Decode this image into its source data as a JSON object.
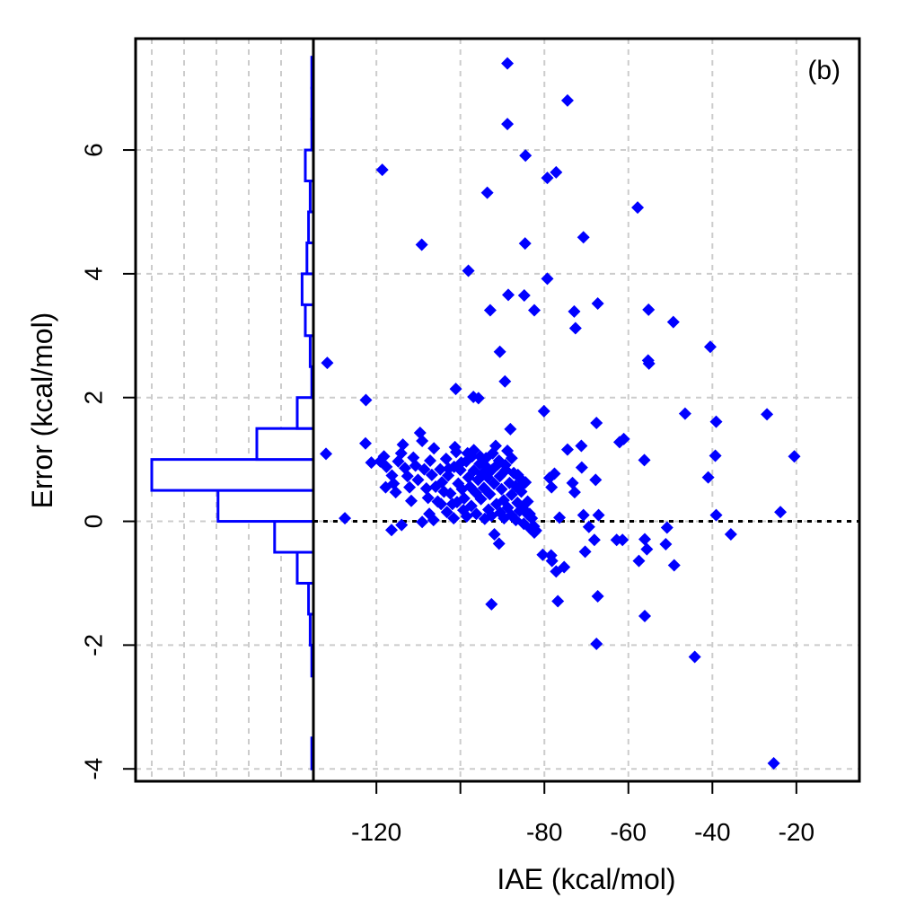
{
  "chart_data": {
    "type": "scatter",
    "panel_label": "(b)",
    "xlabel": "IAE (kcal/mol)",
    "ylabel": "Error (kcal/mol)",
    "xlim": [
      -135,
      -5
    ],
    "ylim": [
      -4.2,
      7.8
    ],
    "x_ticks": [
      {
        "value": -120,
        "label": "-120"
      },
      {
        "value": -80,
        "label": "-80"
      },
      {
        "value": -60,
        "label": "-60"
      },
      {
        "value": -40,
        "label": "-40"
      },
      {
        "value": -20,
        "label": "-20"
      }
    ],
    "y_ticks": [
      {
        "value": -4,
        "label": "-4"
      },
      {
        "value": -2,
        "label": "-2"
      },
      {
        "value": 0,
        "label": "0"
      },
      {
        "value": 2,
        "label": "2"
      },
      {
        "value": 4,
        "label": "4"
      },
      {
        "value": 6,
        "label": "6"
      }
    ],
    "grid": true,
    "reference_line_y": 0,
    "marker_color": "#0000ff",
    "points": [
      [
        -88.8,
        7.4
      ],
      [
        -88.8,
        6.42
      ],
      [
        -74.5,
        6.8
      ],
      [
        -84.5,
        5.91
      ],
      [
        -77.2,
        5.64
      ],
      [
        -79.3,
        5.55
      ],
      [
        -93.6,
        5.31
      ],
      [
        -118.6,
        5.68
      ],
      [
        -57.8,
        5.07
      ],
      [
        -70.7,
        4.59
      ],
      [
        -84.6,
        4.49
      ],
      [
        -109.2,
        4.47
      ],
      [
        -98.1,
        4.05
      ],
      [
        -79.3,
        3.92
      ],
      [
        -88.6,
        3.66
      ],
      [
        -84.8,
        3.65
      ],
      [
        -67.3,
        3.52
      ],
      [
        -72.9,
        3.39
      ],
      [
        -92.9,
        3.41
      ],
      [
        -82.4,
        3.41
      ],
      [
        -55.2,
        3.42
      ],
      [
        -49.3,
        3.22
      ],
      [
        -72.6,
        3.12
      ],
      [
        -40.5,
        2.82
      ],
      [
        -90.6,
        2.74
      ],
      [
        -55.3,
        2.6
      ],
      [
        -55.1,
        2.55
      ],
      [
        -131.7,
        2.56
      ],
      [
        -89.4,
        2.26
      ],
      [
        -101.1,
        2.14
      ],
      [
        -122.5,
        1.96
      ],
      [
        -96.9,
        2.01
      ],
      [
        -95.7,
        1.99
      ],
      [
        -46.5,
        1.74
      ],
      [
        -39.1,
        1.61
      ],
      [
        -80.1,
        1.78
      ],
      [
        -27,
        1.73
      ],
      [
        -67.6,
        1.59
      ],
      [
        -62.1,
        1.28
      ],
      [
        -61.1,
        1.33
      ],
      [
        -88.1,
        1.49
      ],
      [
        -74.5,
        1.16
      ],
      [
        -71.2,
        1.22
      ],
      [
        -20.5,
        1.05
      ],
      [
        -132,
        1.09
      ],
      [
        -56.2,
        0.99
      ],
      [
        -39.3,
        1.06
      ],
      [
        -41,
        0.71
      ],
      [
        -23.8,
        0.15
      ],
      [
        -39.1,
        0.1
      ],
      [
        -35.6,
        -0.21
      ],
      [
        -127.5,
        0.05
      ],
      [
        -50.8,
        -0.1
      ],
      [
        -51.1,
        -0.37
      ],
      [
        -49.1,
        -0.71
      ],
      [
        -57.5,
        -0.64
      ],
      [
        -55.6,
        -0.45
      ],
      [
        -56.1,
        -0.29
      ],
      [
        -61.4,
        -0.3
      ],
      [
        -62.8,
        -0.3
      ],
      [
        -67.1,
        0.1
      ],
      [
        -68.1,
        -0.3
      ],
      [
        -70.3,
        -0.49
      ],
      [
        -69.4,
        -0.09
      ],
      [
        -70.7,
        0.1
      ],
      [
        -67.8,
        0.67
      ],
      [
        -71.1,
        0.87
      ],
      [
        -73.3,
        0.62
      ],
      [
        -72.8,
        0.47
      ],
      [
        -77.6,
        0.77
      ],
      [
        -78.3,
        0.55
      ],
      [
        -78.8,
        0.7
      ],
      [
        -80.4,
        -0.54
      ],
      [
        -78.2,
        -0.64
      ],
      [
        -75.3,
        -0.74
      ],
      [
        -77.2,
        -0.81
      ],
      [
        -78.4,
        -0.55
      ],
      [
        -76.4,
        0.06
      ],
      [
        -76.8,
        -1.29
      ],
      [
        -67.3,
        -1.21
      ],
      [
        -56.1,
        -1.53
      ],
      [
        -67.6,
        -1.98
      ],
      [
        -44.2,
        -2.19
      ],
      [
        -92.6,
        -1.34
      ],
      [
        -25.4,
        -3.91
      ],
      [
        -90.8,
        -0.36
      ],
      [
        -91.9,
        -0.21
      ],
      [
        -122.6,
        1.26
      ],
      [
        -119.1,
        0.97
      ],
      [
        -117.6,
        0.88
      ],
      [
        -116.3,
        0.74
      ],
      [
        -115.9,
        0.61
      ],
      [
        -115.4,
        0.47
      ],
      [
        -114.8,
        0.97
      ],
      [
        -114.1,
        1.1
      ],
      [
        -113.7,
        1.24
      ],
      [
        -113.2,
        0.86
      ],
      [
        -112.6,
        0.73
      ],
      [
        -112.1,
        0.55
      ],
      [
        -111.7,
        0.33
      ],
      [
        -111.2,
        1.03
      ],
      [
        -110.7,
        0.9
      ],
      [
        -110.1,
        0.67
      ],
      [
        -109.6,
        1.43
      ],
      [
        -109.1,
        1.3
      ],
      [
        -108.6,
        0.84
      ],
      [
        -108.1,
        0.53
      ],
      [
        -107.7,
        0.38
      ],
      [
        -107.2,
        0.98
      ],
      [
        -106.8,
        0.75
      ],
      [
        -106.3,
        1.18
      ],
      [
        -105.9,
        0.56
      ],
      [
        -105.4,
        0.32
      ],
      [
        -104.8,
        0.84
      ],
      [
        -104.4,
        0.63
      ],
      [
        -103.9,
        0.48
      ],
      [
        -103.4,
        1.01
      ],
      [
        -102.9,
        0.74
      ],
      [
        -102.4,
        0.45
      ],
      [
        -101.9,
        0.28
      ],
      [
        -101.5,
        0.88
      ],
      [
        -101,
        1.12
      ],
      [
        -100.5,
        0.61
      ],
      [
        -100,
        0.83
      ],
      [
        -99.6,
        0.52
      ],
      [
        -99.1,
        0.37
      ],
      [
        -98.6,
        0.97
      ],
      [
        -98.1,
        0.71
      ],
      [
        -97.7,
        0.56
      ],
      [
        -97.2,
        1.05
      ],
      [
        -96.8,
        0.82
      ],
      [
        -96.3,
        0.46
      ],
      [
        -95.8,
        0.67
      ],
      [
        -95.4,
        0.93
      ],
      [
        -94.9,
        0.76
      ],
      [
        -94.4,
        0.54
      ],
      [
        -93.9,
        1.02
      ],
      [
        -93.5,
        0.71
      ],
      [
        -93,
        0.44
      ],
      [
        -92.5,
        0.83
      ],
      [
        -92,
        0.61
      ],
      [
        -91.6,
        1.22
      ],
      [
        -91.1,
        0.92
      ],
      [
        -90.6,
        0.73
      ],
      [
        -90.2,
        0.52
      ],
      [
        -89.7,
        0.34
      ],
      [
        -89.2,
        0.83
      ],
      [
        -88.8,
        1.14
      ],
      [
        -88.3,
        0.62
      ],
      [
        -87.8,
        0.43
      ],
      [
        -87.3,
        0.78
      ],
      [
        -86.9,
        0.57
      ],
      [
        -86.4,
        0.3
      ],
      [
        -86,
        0.71
      ],
      [
        -85.5,
        0.48
      ],
      [
        -85,
        0.2
      ],
      [
        -84.5,
        0.63
      ],
      [
        -84,
        0.32
      ],
      [
        -83.5,
        0.12
      ],
      [
        -83,
        0.05
      ],
      [
        -82.5,
        -0.08
      ],
      [
        -82,
        -0.15
      ],
      [
        -121.2,
        0.95
      ],
      [
        -118.2,
        1.05
      ],
      [
        -117.8,
        0.55
      ],
      [
        -116.4,
        -0.14
      ],
      [
        -114,
        -0.06
      ],
      [
        -109.1,
        -0.01
      ],
      [
        -107.4,
        0.12
      ],
      [
        -106.4,
        0.02
      ],
      [
        -104.6,
        0.28
      ],
      [
        -103.2,
        0.15
      ],
      [
        -101.6,
        0.05
      ],
      [
        -100.8,
        0.31
      ],
      [
        -99.3,
        0.18
      ],
      [
        -98.5,
        0.08
      ],
      [
        -97.4,
        0.25
      ],
      [
        -96.2,
        0.12
      ],
      [
        -95.1,
        0.36
      ],
      [
        -94.2,
        0.04
      ],
      [
        -93.3,
        0.19
      ],
      [
        -92.6,
        0.09
      ],
      [
        -91.4,
        0.28
      ],
      [
        -90.5,
        0.14
      ],
      [
        -89.6,
        0.05
      ],
      [
        -88.7,
        0.22
      ],
      [
        -87.9,
        0.1
      ],
      [
        -86.8,
        0.02
      ],
      [
        -85.9,
        0.17
      ],
      [
        -84.9,
        -0.04
      ],
      [
        -84.1,
        0.12
      ],
      [
        -83.3,
        -0.12
      ],
      [
        -82.4,
        -0.18
      ],
      [
        -102.8,
        0.85
      ],
      [
        -101.3,
        1.2
      ],
      [
        -99.8,
        0.95
      ],
      [
        -98.3,
        1.1
      ],
      [
        -96.8,
        1.15
      ],
      [
        -95.3,
        1.05
      ],
      [
        -93.8,
        0.88
      ],
      [
        -92.3,
        1.1
      ],
      [
        -90.8,
        0.98
      ],
      [
        -89.3,
        0.91
      ],
      [
        -87.8,
        1.02
      ],
      [
        -86.3,
        0.75
      ],
      [
        -85.8,
        0.55
      ]
    ],
    "histogram": {
      "orientation": "horizontal",
      "bin_width": 0.5,
      "bins": [
        {
          "y0": -4.0,
          "y1": -3.5,
          "count": 1
        },
        {
          "y0": -2.5,
          "y1": -2.0,
          "count": 1
        },
        {
          "y0": -2.0,
          "y1": -1.5,
          "count": 2
        },
        {
          "y0": -1.5,
          "y1": -1.0,
          "count": 3
        },
        {
          "y0": -1.0,
          "y1": -0.5,
          "count": 10
        },
        {
          "y0": -0.5,
          "y1": 0.0,
          "count": 24
        },
        {
          "y0": 0.0,
          "y1": 0.5,
          "count": 59
        },
        {
          "y0": 0.5,
          "y1": 1.0,
          "count": 100
        },
        {
          "y0": 1.0,
          "y1": 1.5,
          "count": 35
        },
        {
          "y0": 1.5,
          "y1": 2.0,
          "count": 10
        },
        {
          "y0": 2.0,
          "y1": 2.5,
          "count": 1
        },
        {
          "y0": 2.5,
          "y1": 3.0,
          "count": 2
        },
        {
          "y0": 3.0,
          "y1": 3.5,
          "count": 5
        },
        {
          "y0": 3.5,
          "y1": 4.0,
          "count": 7
        },
        {
          "y0": 4.0,
          "y1": 4.5,
          "count": 4
        },
        {
          "y0": 4.5,
          "y1": 5.0,
          "count": 3
        },
        {
          "y0": 5.0,
          "y1": 5.5,
          "count": 2
        },
        {
          "y0": 5.5,
          "y1": 6.0,
          "count": 5
        },
        {
          "y0": 6.0,
          "y1": 6.5,
          "count": 1
        },
        {
          "y0": 6.5,
          "y1": 7.0,
          "count": 1
        },
        {
          "y0": 7.0,
          "y1": 7.5,
          "count": 1
        }
      ],
      "count_max": 100
    }
  }
}
